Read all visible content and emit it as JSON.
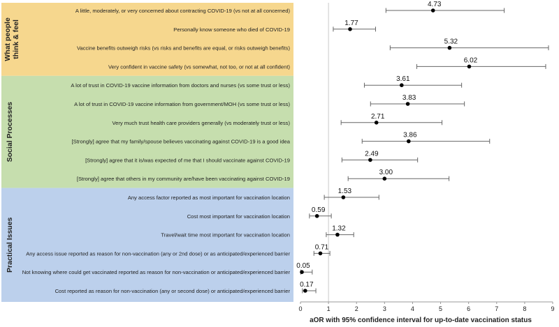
{
  "chart_data": {
    "type": "forest",
    "xlabel": "aOR with 95% confidence interval for up-to-date vaccination status",
    "xlim": [
      0,
      9
    ],
    "xticks": [
      0,
      1,
      2,
      3,
      4,
      5,
      6,
      7,
      8,
      9
    ],
    "reference_line": 1,
    "groups": [
      {
        "name": "What people think & feel",
        "color": "#f6d78e",
        "rows": [
          {
            "label": "A little, moderately, or very concerned about contracting COVID-19 (vs not at all concerned)",
            "value": 4.73,
            "value_label": "4.73",
            "ci": [
              3.05,
              7.27
            ]
          },
          {
            "label": "Personally know someone who died of COVID-19",
            "value": 1.77,
            "value_label": "1.77",
            "ci": [
              1.17,
              2.68
            ]
          },
          {
            "label": "Vaccine benefits outweigh risks (vs risks and benefits are equal, or risks outweigh benefits)",
            "value": 5.32,
            "value_label": "5.32",
            "ci": [
              3.2,
              8.85
            ]
          },
          {
            "label": "Very confident in vaccine safety (vs somewhat, not too, or not at all confident)",
            "value": 6.02,
            "value_label": "6.02",
            "ci": [
              4.15,
              8.75
            ]
          }
        ]
      },
      {
        "name": "Social Processes",
        "color": "#c6deae",
        "rows": [
          {
            "label": "A lot of trust in COVID-19 vaccine information from doctors and nurses (vs some trust or less)",
            "value": 3.61,
            "value_label": "3.61",
            "ci": [
              2.28,
              5.75
            ]
          },
          {
            "label": "A lot of trust in COVID-19 vaccine information from government/MOH (vs some trust or less)",
            "value": 3.83,
            "value_label": "3.83",
            "ci": [
              2.5,
              5.85
            ]
          },
          {
            "label": "Very much trust health care providers generally (vs moderately trust or less)",
            "value": 2.71,
            "value_label": "2.71",
            "ci": [
              1.45,
              5.05
            ]
          },
          {
            "label": "[Strongly] agree that my family/spouse believes vaccinating against COVID-19 is a good idea",
            "value": 3.86,
            "value_label": "3.86",
            "ci": [
              2.2,
              6.75
            ]
          },
          {
            "label": "[Strongly] agree that it is/was expected of me that I should vaccinate against COVID-19",
            "value": 2.49,
            "value_label": "2.49",
            "ci": [
              1.48,
              4.18
            ]
          },
          {
            "label": "[Strongly] agree that others in my community are/have been vaccinating against COVID-19",
            "value": 3.0,
            "value_label": "3.00",
            "ci": [
              1.7,
              5.3
            ]
          }
        ]
      },
      {
        "name": "Practical Issues",
        "color": "#bcd0ec",
        "rows": [
          {
            "label": "Any access factor reported as most important for vaccination location",
            "value": 1.53,
            "value_label": "1.53",
            "ci": [
              0.85,
              2.8
            ]
          },
          {
            "label": "Cost most important for vaccination location",
            "value": 0.59,
            "value_label": "0.59",
            "ci": [
              0.32,
              1.1
            ]
          },
          {
            "label": "Travel/wait time most important for vaccination location",
            "value": 1.32,
            "value_label": "1.32",
            "ci": [
              0.92,
              1.9
            ]
          },
          {
            "label": "Any access issue reported as reason for non-vaccination (any or 2nd dose) or as anticipated/experienced barrier",
            "value": 0.71,
            "value_label": "0.71",
            "ci": [
              0.48,
              1.05
            ]
          },
          {
            "label": "Not knowing where could get vaccinated reported as reason for non-vaccination or anticipated/experienced barrier",
            "value": 0.05,
            "value_label": "0.05",
            "ci": [
              0.01,
              0.42
            ]
          },
          {
            "label": "Cost reported as reason for non-vaccination (any or second dose) or anticipated/experienced barrier",
            "value": 0.17,
            "value_label": "0.17",
            "ci": [
              0.07,
              0.55
            ]
          }
        ]
      }
    ]
  }
}
